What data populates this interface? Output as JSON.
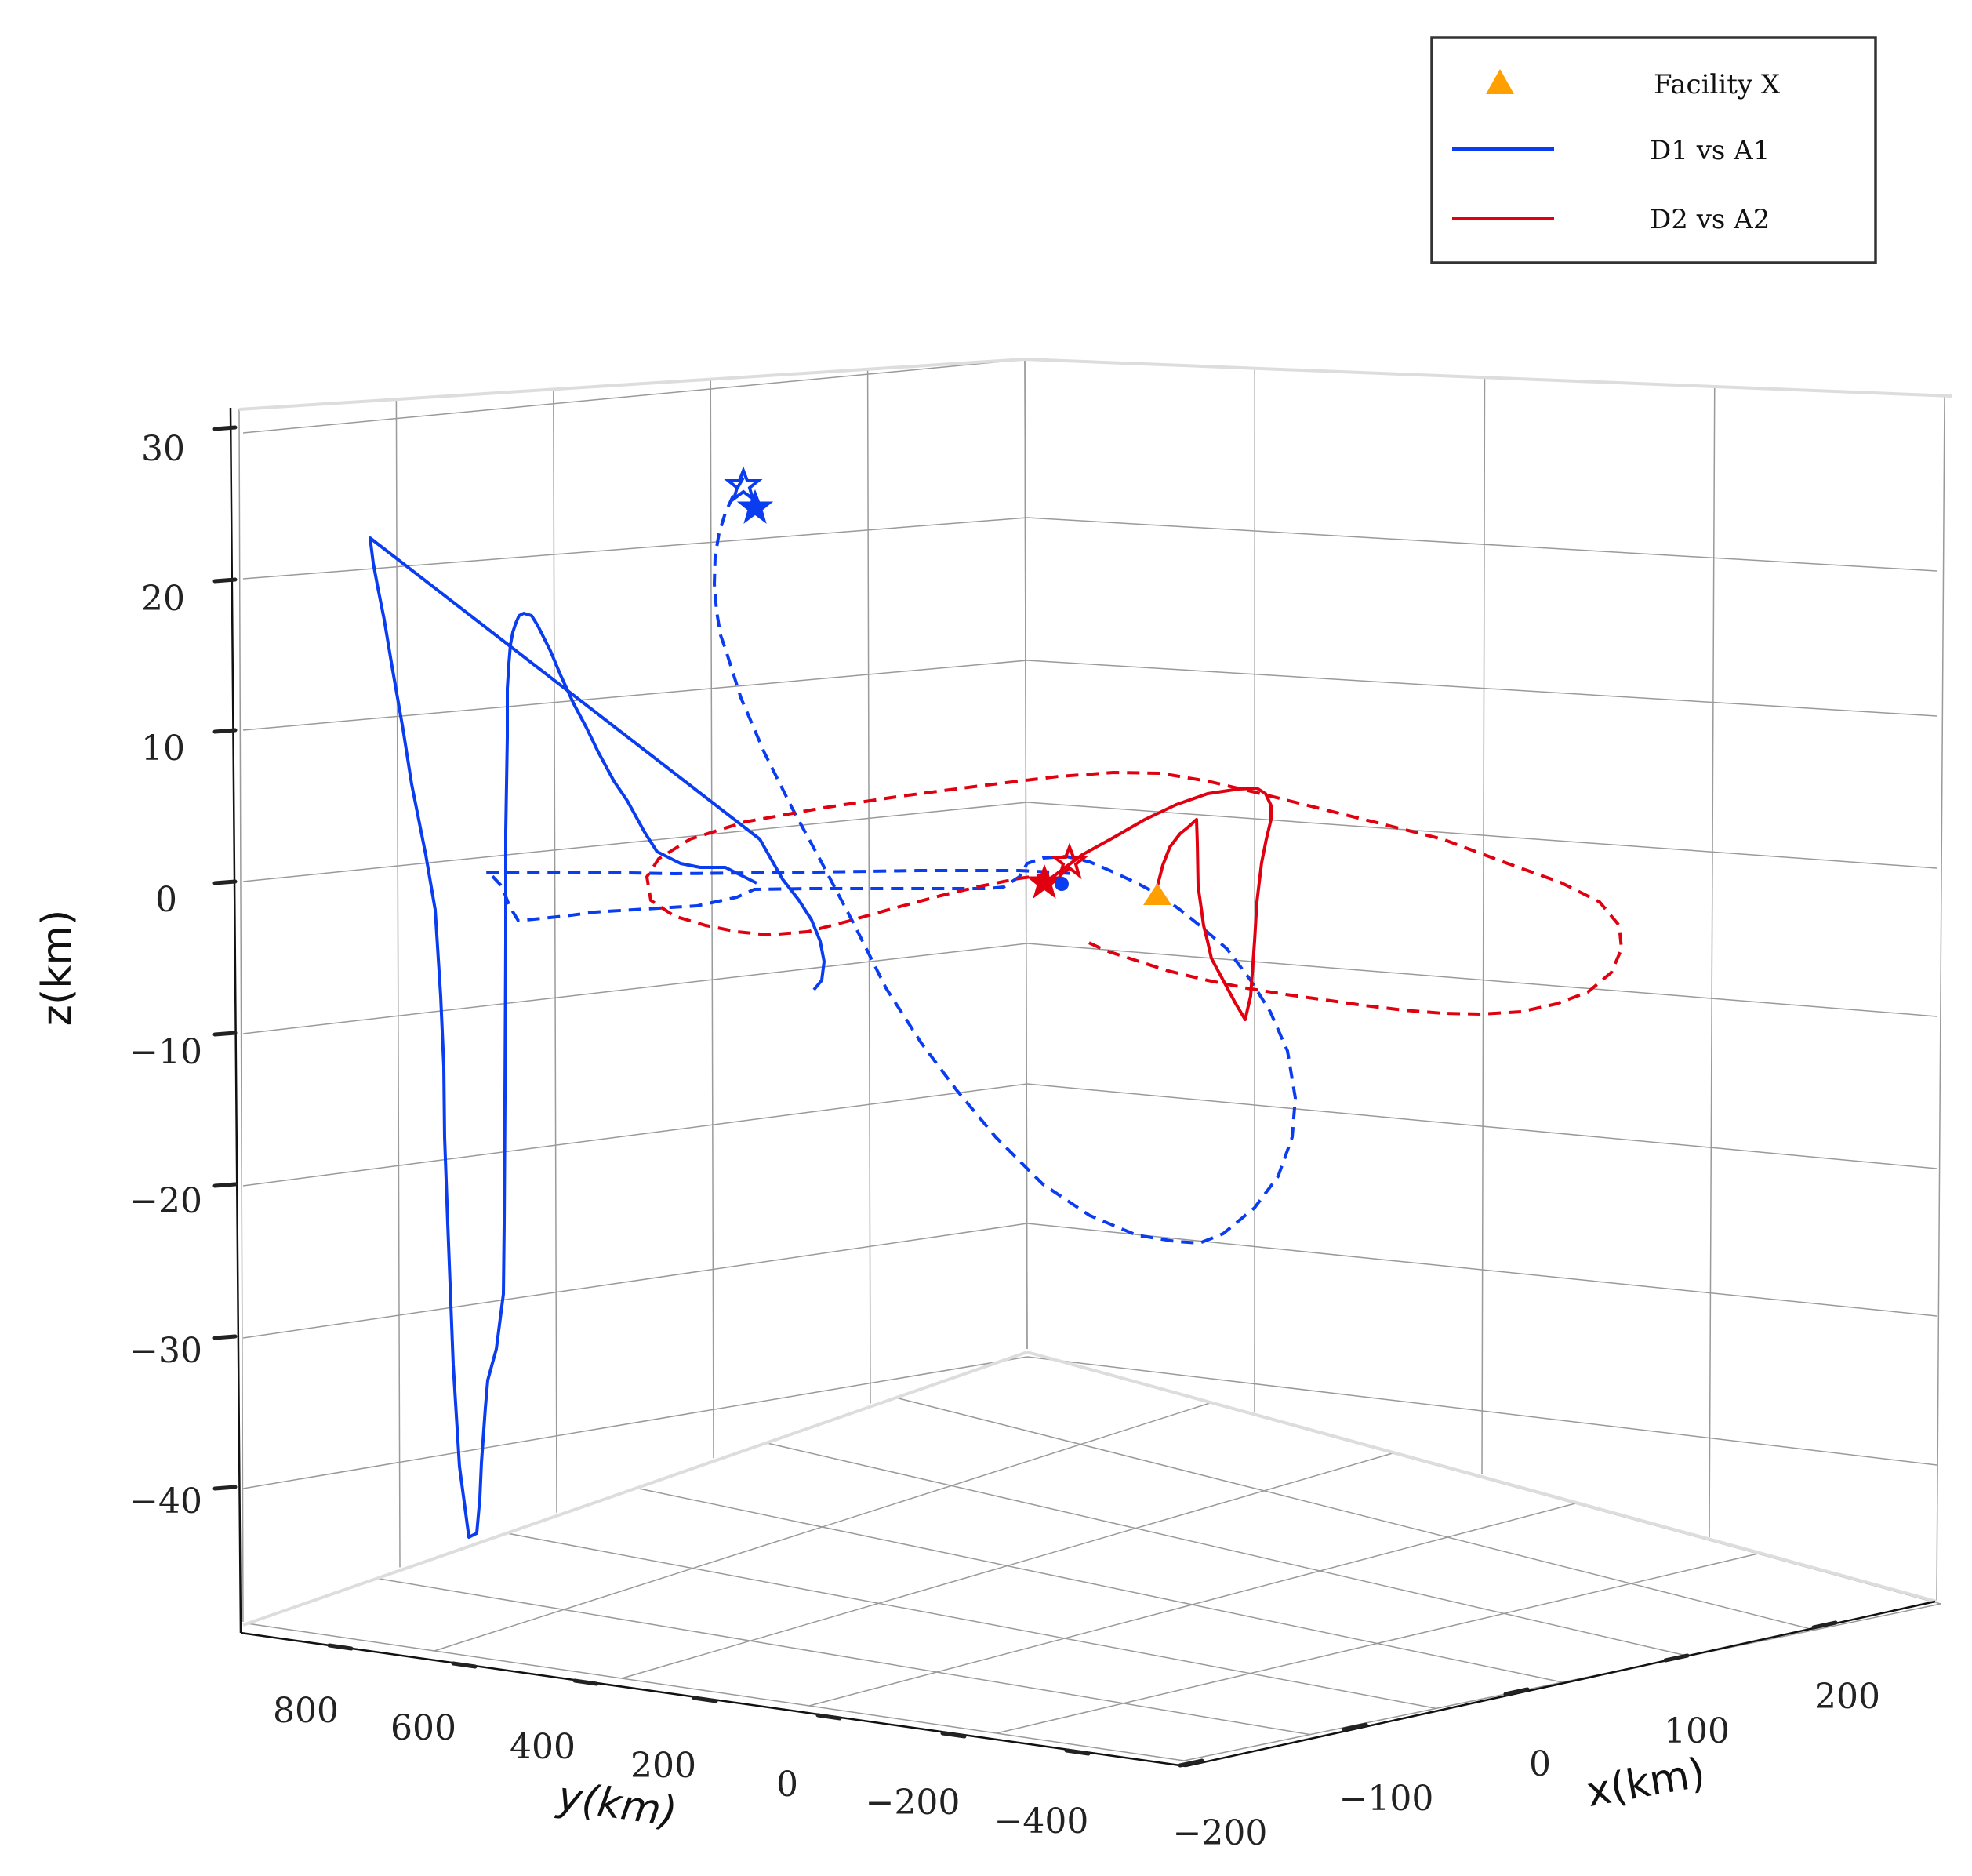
{
  "chart_data": {
    "type": "line3d",
    "xlabel": "x(km)",
    "ylabel": "y(km)",
    "zlabel": "z(km)",
    "x_ticks": [
      "−200",
      "−100",
      "0",
      "100",
      "200"
    ],
    "y_ticks": [
      "800",
      "600",
      "400",
      "200",
      "0",
      "−200",
      "−400"
    ],
    "z_ticks": [
      "30",
      "20",
      "10",
      "0",
      "−10",
      "−20",
      "−30",
      "−40"
    ],
    "legend": {
      "placement": "top-right",
      "entries": [
        {
          "label": "Facility X",
          "marker": "triangle",
          "color": "#ff9f00"
        },
        {
          "label": "D1 vs A1",
          "marker": "line",
          "color": "#0a3cf0"
        },
        {
          "label": "D2 vs A2",
          "marker": "line",
          "color": "#e0000f"
        }
      ]
    },
    "colors": {
      "blue": "#0a3cf0",
      "red": "#e0000f",
      "orange": "#ff9f00"
    }
  }
}
